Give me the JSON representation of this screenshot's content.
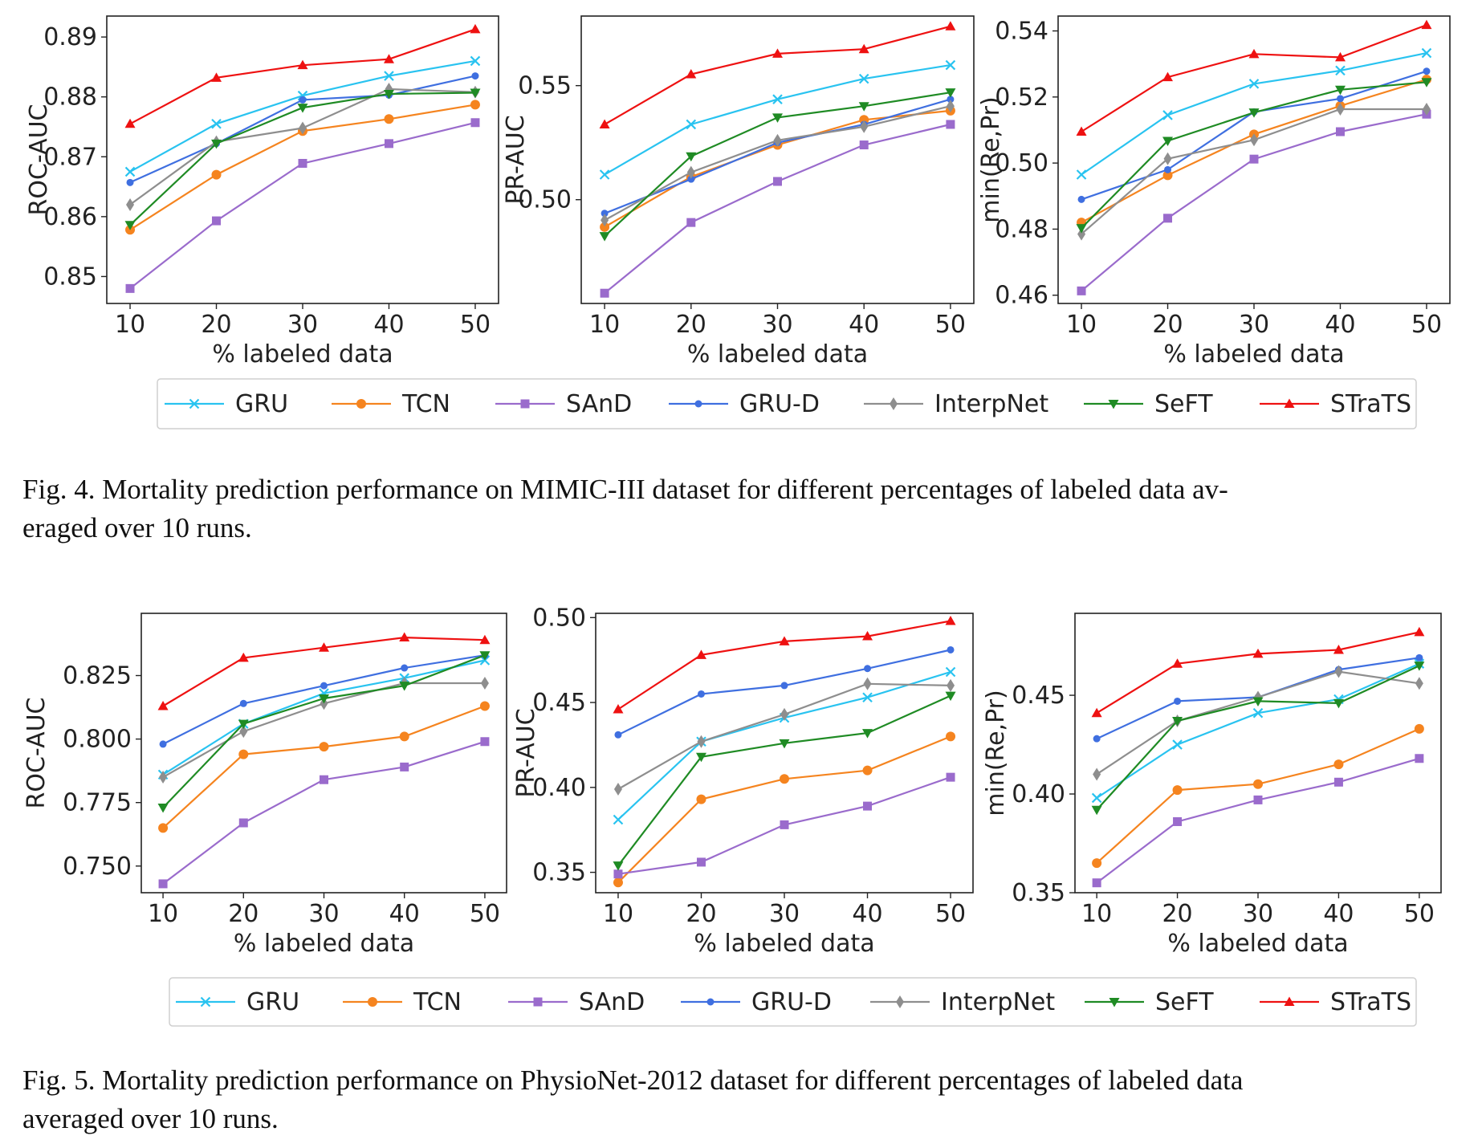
{
  "colors": {
    "GRU": "#29c3f0",
    "TCN": "#f5841f",
    "SAnD": "#9a6bcc",
    "GRU-D": "#3f6fe0",
    "InterpNet": "#8e8e8e",
    "SeFT": "#1f8b24",
    "STraTS": "#ee1111"
  },
  "chart_data": [
    {
      "type": "line",
      "figure": "Fig. 4",
      "xlabel": "% labeled data",
      "ylabel": "ROC-AUC",
      "x": [
        10,
        20,
        30,
        40,
        50
      ],
      "xticks": [
        "10",
        "20",
        "30",
        "40",
        "50"
      ],
      "ylim": [
        0.8455,
        0.8935
      ],
      "yticks": [
        "0.85",
        "0.86",
        "0.87",
        "0.88",
        "0.89"
      ],
      "series": [
        {
          "name": "GRU",
          "marker": "x",
          "values": [
            0.8675,
            0.8755,
            0.8802,
            0.8835,
            0.886
          ]
        },
        {
          "name": "TCN",
          "marker": "circle",
          "values": [
            0.8578,
            0.867,
            0.8743,
            0.8763,
            0.8787
          ]
        },
        {
          "name": "SAnD",
          "marker": "square",
          "values": [
            0.848,
            0.8593,
            0.8689,
            0.8722,
            0.8757
          ]
        },
        {
          "name": "GRU-D",
          "marker": "dot",
          "values": [
            0.8657,
            0.8722,
            0.8795,
            0.8803,
            0.8835
          ]
        },
        {
          "name": "InterpNet",
          "marker": "diamond",
          "values": [
            0.862,
            0.8725,
            0.8748,
            0.8813,
            0.8808
          ]
        },
        {
          "name": "SeFT",
          "marker": "tri-down",
          "values": [
            0.8586,
            0.8722,
            0.8782,
            0.8805,
            0.8807
          ]
        },
        {
          "name": "STraTS",
          "marker": "tri-up",
          "values": [
            0.8755,
            0.8832,
            0.8853,
            0.8863,
            0.8913
          ]
        }
      ]
    },
    {
      "type": "line",
      "figure": "Fig. 4",
      "xlabel": "% labeled data",
      "ylabel": "PR-AUC",
      "x": [
        10,
        20,
        30,
        40,
        50
      ],
      "xticks": [
        "10",
        "20",
        "30",
        "40",
        "50"
      ],
      "ylim": [
        0.4545,
        0.5805
      ],
      "yticks": [
        "0.50",
        "0.55"
      ],
      "series": [
        {
          "name": "GRU",
          "marker": "x",
          "values": [
            0.511,
            0.533,
            0.544,
            0.553,
            0.559
          ]
        },
        {
          "name": "TCN",
          "marker": "circle",
          "values": [
            0.488,
            0.51,
            0.524,
            0.535,
            0.539
          ]
        },
        {
          "name": "SAnD",
          "marker": "square",
          "values": [
            0.459,
            0.49,
            0.508,
            0.524,
            0.533
          ]
        },
        {
          "name": "GRU-D",
          "marker": "dot",
          "values": [
            0.494,
            0.509,
            0.525,
            0.533,
            0.544
          ]
        },
        {
          "name": "InterpNet",
          "marker": "diamond",
          "values": [
            0.491,
            0.512,
            0.526,
            0.532,
            0.541
          ]
        },
        {
          "name": "SeFT",
          "marker": "tri-down",
          "values": [
            0.484,
            0.519,
            0.536,
            0.541,
            0.547
          ]
        },
        {
          "name": "STraTS",
          "marker": "tri-up",
          "values": [
            0.533,
            0.555,
            0.564,
            0.566,
            0.576
          ]
        }
      ]
    },
    {
      "type": "line",
      "figure": "Fig. 4",
      "xlabel": "% labeled data",
      "ylabel": "min(Re,Pr)",
      "x": [
        10,
        20,
        30,
        40,
        50
      ],
      "xticks": [
        "10",
        "20",
        "30",
        "40",
        "50"
      ],
      "ylim": [
        0.4575,
        0.5445
      ],
      "yticks": [
        "0.46",
        "0.48",
        "0.50",
        "0.52",
        "0.54"
      ],
      "series": [
        {
          "name": "GRU",
          "marker": "x",
          "values": [
            0.4965,
            0.5145,
            0.524,
            0.528,
            0.5333
          ]
        },
        {
          "name": "TCN",
          "marker": "circle",
          "values": [
            0.482,
            0.4963,
            0.5087,
            0.5173,
            0.5253
          ]
        },
        {
          "name": "SAnD",
          "marker": "square",
          "values": [
            0.4613,
            0.4833,
            0.5012,
            0.5095,
            0.5148
          ]
        },
        {
          "name": "GRU-D",
          "marker": "dot",
          "values": [
            0.489,
            0.498,
            0.5155,
            0.5195,
            0.5278
          ]
        },
        {
          "name": "InterpNet",
          "marker": "diamond",
          "values": [
            0.4785,
            0.5013,
            0.507,
            0.5163,
            0.5163
          ]
        },
        {
          "name": "SeFT",
          "marker": "tri-down",
          "values": [
            0.4803,
            0.5067,
            0.5153,
            0.5222,
            0.5245
          ]
        },
        {
          "name": "STraTS",
          "marker": "tri-up",
          "values": [
            0.5095,
            0.526,
            0.533,
            0.532,
            0.5418
          ]
        }
      ]
    },
    {
      "type": "line",
      "figure": "Fig. 5",
      "xlabel": "% labeled data",
      "ylabel": "ROC-AUC",
      "x": [
        10,
        20,
        30,
        40,
        50
      ],
      "xticks": [
        "10",
        "20",
        "30",
        "40",
        "50"
      ],
      "ylim": [
        0.7395,
        0.8495
      ],
      "yticks": [
        "0.750",
        "0.775",
        "0.800",
        "0.825"
      ],
      "series": [
        {
          "name": "GRU",
          "marker": "x",
          "values": [
            0.786,
            0.806,
            0.818,
            0.824,
            0.831
          ]
        },
        {
          "name": "TCN",
          "marker": "circle",
          "values": [
            0.765,
            0.794,
            0.797,
            0.801,
            0.813
          ]
        },
        {
          "name": "SAnD",
          "marker": "square",
          "values": [
            0.743,
            0.767,
            0.784,
            0.789,
            0.799
          ]
        },
        {
          "name": "GRU-D",
          "marker": "dot",
          "values": [
            0.798,
            0.814,
            0.821,
            0.828,
            0.833
          ]
        },
        {
          "name": "InterpNet",
          "marker": "diamond",
          "values": [
            0.785,
            0.803,
            0.814,
            0.822,
            0.822
          ]
        },
        {
          "name": "SeFT",
          "marker": "tri-down",
          "values": [
            0.773,
            0.806,
            0.816,
            0.821,
            0.833
          ]
        },
        {
          "name": "STraTS",
          "marker": "tri-up",
          "values": [
            0.813,
            0.832,
            0.836,
            0.84,
            0.839
          ]
        }
      ]
    },
    {
      "type": "line",
      "figure": "Fig. 5",
      "xlabel": "% labeled data",
      "ylabel": "PR-AUC",
      "x": [
        10,
        20,
        30,
        40,
        50
      ],
      "xticks": [
        "10",
        "20",
        "30",
        "40",
        "50"
      ],
      "ylim": [
        0.338,
        0.5025
      ],
      "yticks": [
        "0.35",
        "0.40",
        "0.45",
        "0.50"
      ],
      "series": [
        {
          "name": "GRU",
          "marker": "x",
          "values": [
            0.381,
            0.427,
            0.441,
            0.453,
            0.468
          ]
        },
        {
          "name": "TCN",
          "marker": "circle",
          "values": [
            0.344,
            0.393,
            0.405,
            0.41,
            0.43
          ]
        },
        {
          "name": "SAnD",
          "marker": "square",
          "values": [
            0.349,
            0.356,
            0.378,
            0.389,
            0.406
          ]
        },
        {
          "name": "GRU-D",
          "marker": "dot",
          "values": [
            0.431,
            0.455,
            0.46,
            0.47,
            0.481
          ]
        },
        {
          "name": "InterpNet",
          "marker": "diamond",
          "values": [
            0.399,
            0.427,
            0.443,
            0.461,
            0.46
          ]
        },
        {
          "name": "SeFT",
          "marker": "tri-down",
          "values": [
            0.354,
            0.418,
            0.426,
            0.432,
            0.454
          ]
        },
        {
          "name": "STraTS",
          "marker": "tri-up",
          "values": [
            0.446,
            0.478,
            0.486,
            0.489,
            0.498
          ]
        }
      ]
    },
    {
      "type": "line",
      "figure": "Fig. 5",
      "xlabel": "% labeled data",
      "ylabel": "min(Re,Pr)",
      "x": [
        10,
        20,
        30,
        40,
        50
      ],
      "xticks": [
        "10",
        "20",
        "30",
        "40",
        "50"
      ],
      "ylim": [
        0.35,
        0.4915
      ],
      "yticks": [
        "0.35",
        "0.40",
        "0.45"
      ],
      "series": [
        {
          "name": "GRU",
          "marker": "x",
          "values": [
            0.398,
            0.425,
            0.441,
            0.448,
            0.466
          ]
        },
        {
          "name": "TCN",
          "marker": "circle",
          "values": [
            0.365,
            0.402,
            0.405,
            0.415,
            0.433
          ]
        },
        {
          "name": "SAnD",
          "marker": "square",
          "values": [
            0.355,
            0.386,
            0.397,
            0.406,
            0.418
          ]
        },
        {
          "name": "GRU-D",
          "marker": "dot",
          "values": [
            0.428,
            0.447,
            0.449,
            0.463,
            0.469
          ]
        },
        {
          "name": "InterpNet",
          "marker": "diamond",
          "values": [
            0.41,
            0.437,
            0.449,
            0.462,
            0.456
          ]
        },
        {
          "name": "SeFT",
          "marker": "tri-down",
          "values": [
            0.392,
            0.437,
            0.447,
            0.446,
            0.465
          ]
        },
        {
          "name": "STraTS",
          "marker": "tri-up",
          "values": [
            0.441,
            0.466,
            0.471,
            0.473,
            0.482
          ]
        }
      ]
    }
  ],
  "legend": [
    "GRU",
    "TCN",
    "SAnD",
    "GRU-D",
    "InterpNet",
    "SeFT",
    "STraTS"
  ],
  "captions": {
    "fig4_line1": "Fig. 4.  Mortality prediction performance on MIMIC-III dataset for different percentages of labeled data av-",
    "fig4_line2": "eraged over 10 runs.",
    "fig5_line1": "Fig. 5.  Mortality prediction performance on PhysioNet-2012 dataset for different percentages of labeled data",
    "fig5_line2": "averaged over 10 runs."
  }
}
